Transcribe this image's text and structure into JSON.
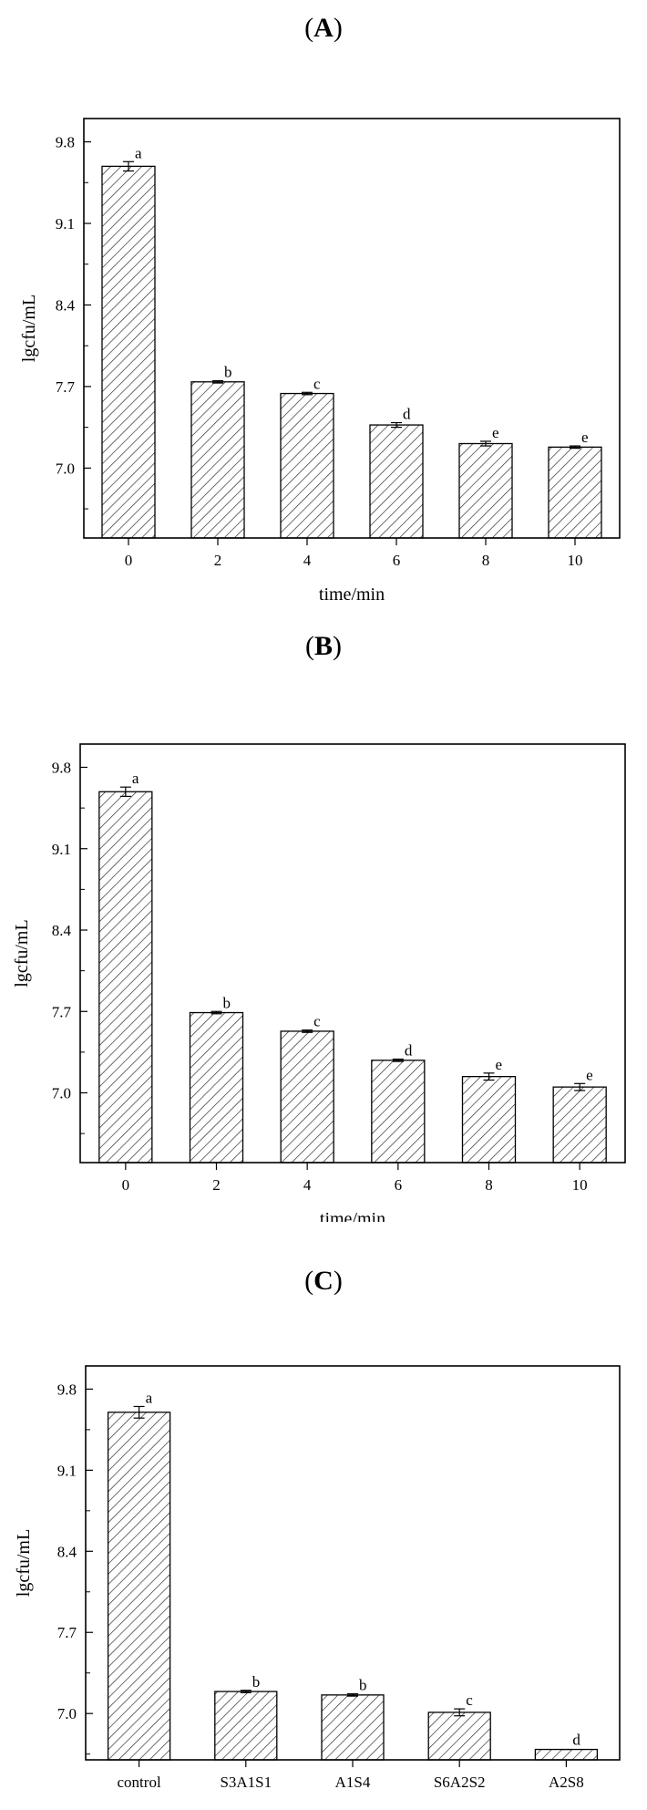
{
  "panels": [
    {
      "label": "A",
      "chart_data": {
        "type": "bar",
        "xlabel": "time/min",
        "ylabel": "lgcfu/mL",
        "ylim": [
          6.4,
          10.0
        ],
        "yticks": [
          "7.0",
          "7.7",
          "8.4",
          "9.1",
          "9.8"
        ],
        "categories": [
          "0",
          "2",
          "4",
          "6",
          "8",
          "10"
        ],
        "values": [
          9.59,
          7.74,
          7.64,
          7.37,
          7.21,
          7.18
        ],
        "errors": [
          0.04,
          0.01,
          0.01,
          0.02,
          0.02,
          0.01
        ],
        "letters": [
          "a",
          "b",
          "c",
          "d",
          "e",
          "e"
        ],
        "fill": "hatch"
      }
    },
    {
      "label": "B",
      "chart_data": {
        "type": "bar",
        "xlabel": "time/min",
        "ylabel": "lgcfu/mL",
        "ylim": [
          6.4,
          10.0
        ],
        "yticks": [
          "7.0",
          "7.7",
          "8.4",
          "9.1",
          "9.8"
        ],
        "categories": [
          "0",
          "2",
          "4",
          "6",
          "8",
          "10"
        ],
        "values": [
          9.59,
          7.69,
          7.53,
          7.28,
          7.14,
          7.05
        ],
        "errors": [
          0.04,
          0.01,
          0.01,
          0.01,
          0.03,
          0.03
        ],
        "letters": [
          "a",
          "b",
          "c",
          "d",
          "e",
          "e"
        ],
        "fill": "hatch"
      }
    },
    {
      "label": "C",
      "chart_data": {
        "type": "bar",
        "xlabel": "",
        "ylabel": "lgcfu/mL",
        "ylim": [
          6.6,
          10.0
        ],
        "yticks": [
          "7.0",
          "7.7",
          "8.4",
          "9.1",
          "9.8"
        ],
        "categories": [
          "control",
          "S3A1S1",
          "A1S4",
          "S6A2S2",
          "A2S8"
        ],
        "values": [
          9.6,
          7.19,
          7.16,
          7.01,
          6.69
        ],
        "errors": [
          0.05,
          0.01,
          0.01,
          0.03,
          0.0
        ],
        "letters": [
          "a",
          "b",
          "b",
          "c",
          "d"
        ],
        "fill": "hatch"
      }
    }
  ]
}
